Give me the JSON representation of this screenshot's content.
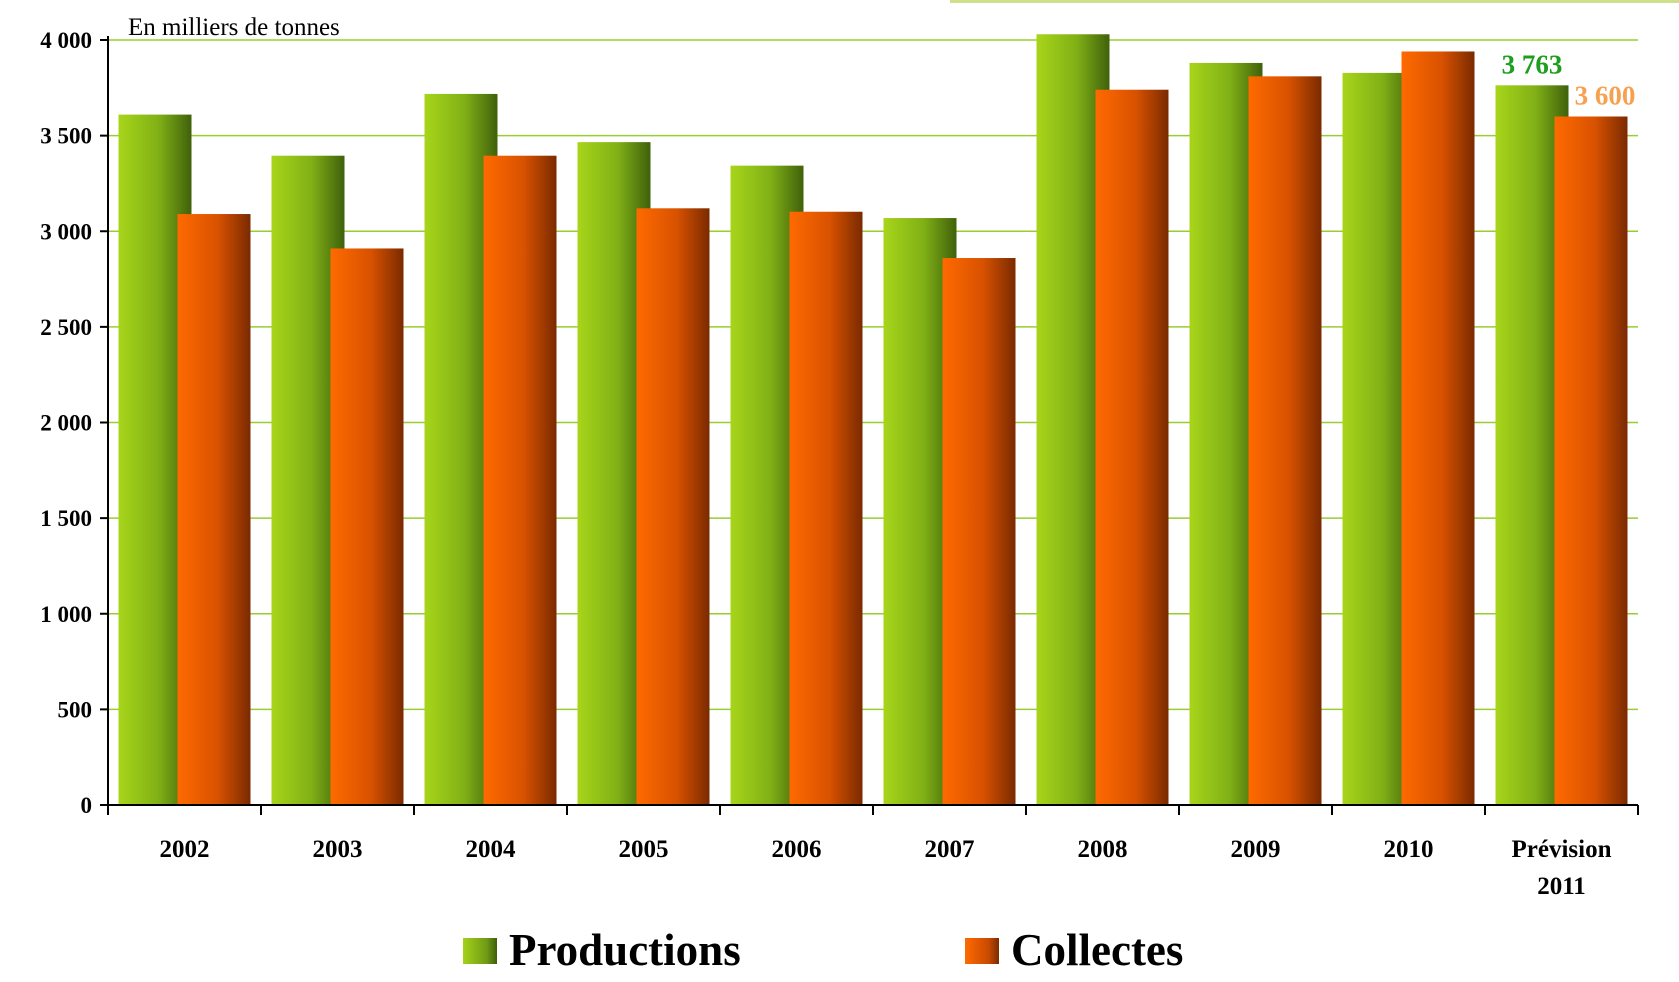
{
  "chart_data": {
    "type": "bar",
    "unit_label": "En milliers de tonnes",
    "categories": [
      "2002",
      "2003",
      "2004",
      "2005",
      "2006",
      "2007",
      "2008",
      "2009",
      "2010",
      "Prévision 2011"
    ],
    "series": [
      {
        "name": "Productions",
        "color": "#8dc01c",
        "values": [
          3610,
          3395,
          3718,
          3466,
          3343,
          3069,
          4030,
          3880,
          3828,
          3763
        ]
      },
      {
        "name": "Collectes",
        "color": "#f46a00",
        "values": [
          3090,
          2910,
          3395,
          3120,
          3102,
          2860,
          3740,
          3810,
          3940,
          3600
        ]
      }
    ],
    "yticks": [
      "0",
      "500",
      "1 000",
      "1 500",
      "2 000",
      "2 500",
      "3 000",
      "3 500",
      "4 000"
    ],
    "ylim": [
      0,
      4000
    ],
    "grid": true,
    "legend": "bottom",
    "data_labels": [
      {
        "series": 0,
        "category": 9,
        "text": "3 763",
        "color": "#1e9e1e"
      },
      {
        "series": 1,
        "category": 9,
        "text": "3 600",
        "color": "#f7a050"
      }
    ]
  },
  "legend": {
    "productions": "Productions",
    "collectes": "Collectes"
  }
}
